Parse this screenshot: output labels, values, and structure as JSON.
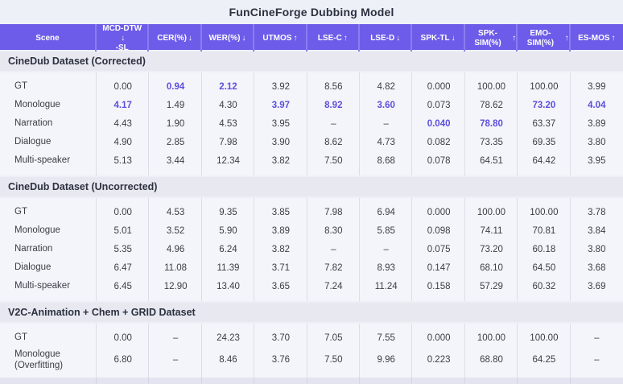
{
  "title": "FunCineForge Dubbing Model",
  "colors": {
    "header_bg": "#6d5ce9",
    "header_separator": "#8b7df1",
    "section_band_bg": "#e8e8f0",
    "rows_bg": "#f4f5fa",
    "column_separator": "#dcdde9",
    "text": "#3c3c46",
    "highlight_accent": "#5c4fdb",
    "title_text": "#2c3140"
  },
  "table": {
    "columns": [
      {
        "label": "Scene",
        "arrow": ""
      },
      {
        "label": "MCD-DTW",
        "label2": "-SL",
        "arrow": "↓"
      },
      {
        "label": "CER(%)",
        "arrow": "↓"
      },
      {
        "label": "WER(%)",
        "arrow": "↓"
      },
      {
        "label": "UTMOS",
        "arrow": "↑"
      },
      {
        "label": "LSE-C",
        "arrow": "↑"
      },
      {
        "label": "LSE-D",
        "arrow": "↓"
      },
      {
        "label": "SPK-TL",
        "arrow": "↓"
      },
      {
        "label": "SPK-SIM(%)",
        "arrow": "↑"
      },
      {
        "label": "EMO-SIM(%)",
        "arrow": "↑"
      },
      {
        "label": "ES-MOS",
        "arrow": "↑"
      }
    ],
    "sections": [
      {
        "title": "CineDub Dataset (Corrected)",
        "rows": [
          {
            "scene": "GT",
            "values": [
              "0.00",
              "0.94",
              "2.12",
              "3.92",
              "8.56",
              "4.82",
              "0.000",
              "100.00",
              "100.00",
              "3.99"
            ],
            "bold": [
              1,
              2
            ]
          },
          {
            "scene": "Monologue",
            "values": [
              "4.17",
              "1.49",
              "4.30",
              "3.97",
              "8.92",
              "3.60",
              "0.073",
              "78.62",
              "73.20",
              "4.04"
            ],
            "bold": [
              0,
              3,
              4,
              5,
              8,
              9
            ]
          },
          {
            "scene": "Narration",
            "values": [
              "4.43",
              "1.90",
              "4.53",
              "3.95",
              "–",
              "–",
              "0.040",
              "78.80",
              "63.37",
              "3.89"
            ],
            "bold": [
              6,
              7
            ]
          },
          {
            "scene": "Dialogue",
            "values": [
              "4.90",
              "2.85",
              "7.98",
              "3.90",
              "8.62",
              "4.73",
              "0.082",
              "73.35",
              "69.35",
              "3.80"
            ],
            "bold": []
          },
          {
            "scene": "Multi-speaker",
            "values": [
              "5.13",
              "3.44",
              "12.34",
              "3.82",
              "7.50",
              "8.68",
              "0.078",
              "64.51",
              "64.42",
              "3.95"
            ],
            "bold": []
          }
        ]
      },
      {
        "title": "CineDub Dataset (Uncorrected)",
        "rows": [
          {
            "scene": "GT",
            "values": [
              "0.00",
              "4.53",
              "9.35",
              "3.85",
              "7.98",
              "6.94",
              "0.000",
              "100.00",
              "100.00",
              "3.78"
            ],
            "bold": []
          },
          {
            "scene": "Monologue",
            "values": [
              "5.01",
              "3.52",
              "5.90",
              "3.89",
              "8.30",
              "5.85",
              "0.098",
              "74.11",
              "70.81",
              "3.84"
            ],
            "bold": []
          },
          {
            "scene": "Narration",
            "values": [
              "5.35",
              "4.96",
              "6.24",
              "3.82",
              "–",
              "–",
              "0.075",
              "73.20",
              "60.18",
              "3.80"
            ],
            "bold": []
          },
          {
            "scene": "Dialogue",
            "values": [
              "6.47",
              "11.08",
              "11.39",
              "3.71",
              "7.82",
              "8.93",
              "0.147",
              "68.10",
              "64.50",
              "3.68"
            ],
            "bold": []
          },
          {
            "scene": "Multi-speaker",
            "values": [
              "6.45",
              "12.90",
              "13.40",
              "3.65",
              "7.24",
              "11.24",
              "0.158",
              "57.29",
              "60.32",
              "3.69"
            ],
            "bold": []
          }
        ]
      },
      {
        "title": "V2C-Animation + Chem + GRID Dataset",
        "rows": [
          {
            "scene": "GT",
            "values": [
              "0.00",
              "–",
              "24.23",
              "3.70",
              "7.05",
              "7.55",
              "0.000",
              "100.00",
              "100.00",
              "–"
            ],
            "bold": []
          },
          {
            "scene": "Monologue (Overfitting)",
            "values": [
              "6.80",
              "–",
              "8.46",
              "3.76",
              "7.50",
              "9.96",
              "0.223",
              "68.80",
              "64.25",
              "–"
            ],
            "bold": []
          }
        ]
      }
    ]
  }
}
